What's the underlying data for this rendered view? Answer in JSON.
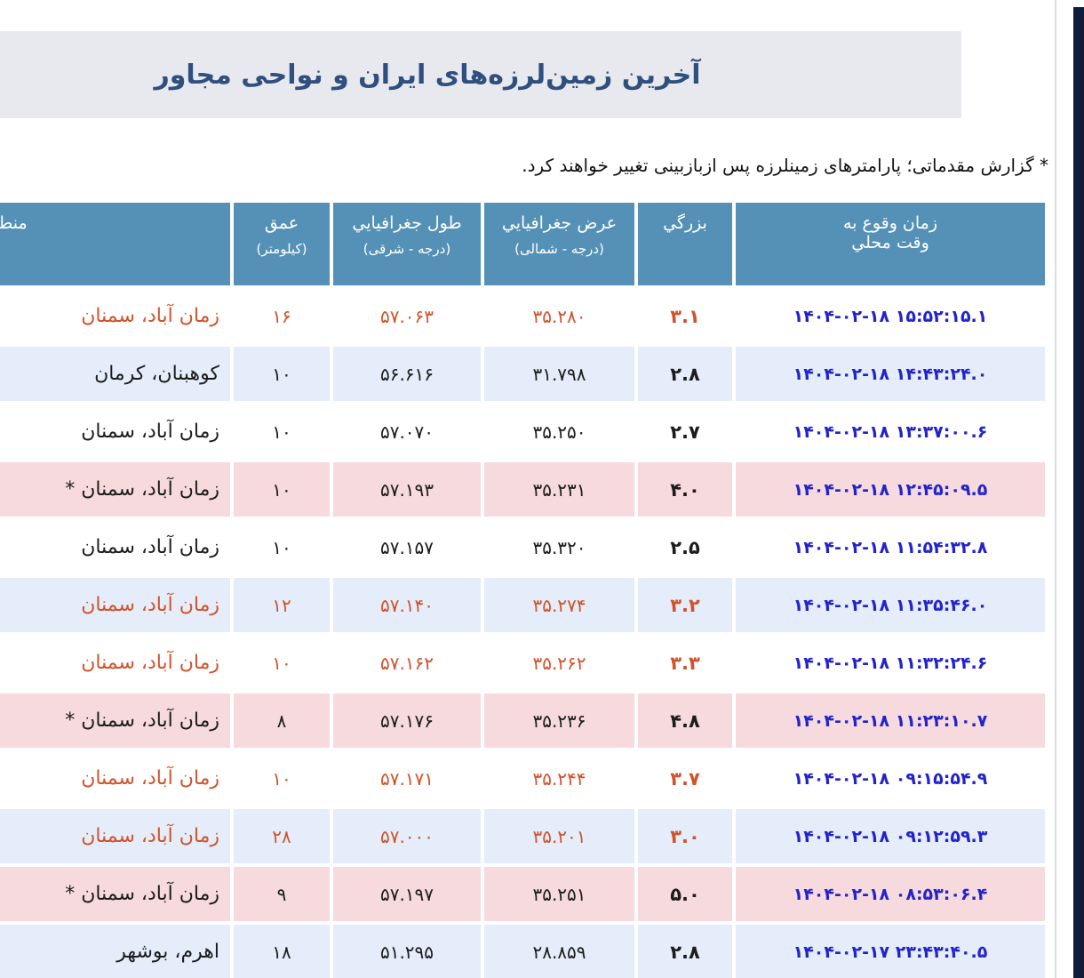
{
  "page": {
    "title": "آخرین زمین‌لرزه‌های ایران و نواحی مجاور",
    "note": "* گزارش مقدماتی؛ پارامترهای زمینلرزه پس ازبازبینی تغییر خواهند کرد."
  },
  "table": {
    "headers": {
      "time_line1": "زمان وقوع به",
      "time_line2": "وقت محلي",
      "magnitude": "بزرگي",
      "latitude_line1": "عرض جغرافيايي",
      "latitude_line2": "(درجه - شمالی)",
      "longitude_line1": "طول جغرافيايي",
      "longitude_line2": "(درجه - شرقی)",
      "depth_line1": "عمق",
      "depth_line2": "(کیلومتر)",
      "region": "منطقه"
    },
    "rows": [
      {
        "time": "۱۴۰۴-۰۲-۱۸ ۱۵:۵۲:۱۵.۱",
        "magnitude": "۳.۱",
        "latitude": "۳۵.۲۸۰",
        "longitude": "۵۷.۰۶۳",
        "depth": "۱۶",
        "region": "زمان آباد، سمنان",
        "row_bg": "white",
        "text_color": "orange"
      },
      {
        "time": "۱۴۰۴-۰۲-۱۸ ۱۴:۴۳:۲۴.۰",
        "magnitude": "۲.۸",
        "latitude": "۳۱.۷۹۸",
        "longitude": "۵۶.۶۱۶",
        "depth": "۱۰",
        "region": "کوهبنان، کرمان",
        "row_bg": "blue",
        "text_color": "black"
      },
      {
        "time": "۱۴۰۴-۰۲-۱۸ ۱۳:۳۷:۰۰.۶",
        "magnitude": "۲.۷",
        "latitude": "۳۵.۲۵۰",
        "longitude": "۵۷.۰۷۰",
        "depth": "۱۰",
        "region": "زمان آباد، سمنان",
        "row_bg": "white",
        "text_color": "black"
      },
      {
        "time": "۱۴۰۴-۰۲-۱۸ ۱۲:۴۵:۰۹.۵",
        "magnitude": "۴.۰",
        "latitude": "۳۵.۲۳۱",
        "longitude": "۵۷.۱۹۳",
        "depth": "۱۰",
        "region": "زمان آباد، سمنان *",
        "row_bg": "pink",
        "text_color": "black"
      },
      {
        "time": "۱۴۰۴-۰۲-۱۸ ۱۱:۵۴:۳۲.۸",
        "magnitude": "۲.۵",
        "latitude": "۳۵.۳۲۰",
        "longitude": "۵۷.۱۵۷",
        "depth": "۱۰",
        "region": "زمان آباد، سمنان",
        "row_bg": "white",
        "text_color": "black"
      },
      {
        "time": "۱۴۰۴-۰۲-۱۸ ۱۱:۳۵:۴۶.۰",
        "magnitude": "۳.۲",
        "latitude": "۳۵.۲۷۴",
        "longitude": "۵۷.۱۴۰",
        "depth": "۱۲",
        "region": "زمان آباد، سمنان",
        "row_bg": "blue",
        "text_color": "orange"
      },
      {
        "time": "۱۴۰۴-۰۲-۱۸ ۱۱:۳۲:۲۴.۶",
        "magnitude": "۳.۳",
        "latitude": "۳۵.۲۶۲",
        "longitude": "۵۷.۱۶۲",
        "depth": "۱۰",
        "region": "زمان آباد، سمنان",
        "row_bg": "white",
        "text_color": "orange"
      },
      {
        "time": "۱۴۰۴-۰۲-۱۸ ۱۱:۲۳:۱۰.۷",
        "magnitude": "۴.۸",
        "latitude": "۳۵.۲۳۶",
        "longitude": "۵۷.۱۷۶",
        "depth": "۸",
        "region": "زمان آباد، سمنان *",
        "row_bg": "pink",
        "text_color": "black"
      },
      {
        "time": "۱۴۰۴-۰۲-۱۸ ۰۹:۱۵:۵۴.۹",
        "magnitude": "۳.۷",
        "latitude": "۳۵.۲۴۴",
        "longitude": "۵۷.۱۷۱",
        "depth": "۱۰",
        "region": "زمان آباد، سمنان",
        "row_bg": "white",
        "text_color": "orange"
      },
      {
        "time": "۱۴۰۴-۰۲-۱۸ ۰۹:۱۲:۵۹.۳",
        "magnitude": "۳.۰",
        "latitude": "۳۵.۲۰۱",
        "longitude": "۵۷.۰۰۰",
        "depth": "۲۸",
        "region": "زمان آباد، سمنان",
        "row_bg": "blue",
        "text_color": "orange"
      },
      {
        "time": "۱۴۰۴-۰۲-۱۸ ۰۸:۵۳:۰۶.۴",
        "magnitude": "۵.۰",
        "latitude": "۳۵.۲۵۱",
        "longitude": "۵۷.۱۹۷",
        "depth": "۹",
        "region": "زمان آباد، سمنان *",
        "row_bg": "pink",
        "text_color": "black"
      },
      {
        "time": "۱۴۰۴-۰۲-۱۷ ۲۳:۴۳:۴۰.۵",
        "magnitude": "۲.۸",
        "latitude": "۲۸.۸۵۹",
        "longitude": "۵۱.۲۹۵",
        "depth": "۱۸",
        "region": "اهرم، بوشهر",
        "row_bg": "blue",
        "text_color": "black"
      }
    ]
  },
  "colors": {
    "header_bg": "#5591b7",
    "row_blue": "#e4edf9",
    "row_pink": "#f7dade",
    "orange_text": "#d0532b",
    "time_link_blue": "#2323cd",
    "title_text": "#2f4f7e",
    "titlebar_bg": "#e7e9ee",
    "window_edge": "#101d3a"
  }
}
